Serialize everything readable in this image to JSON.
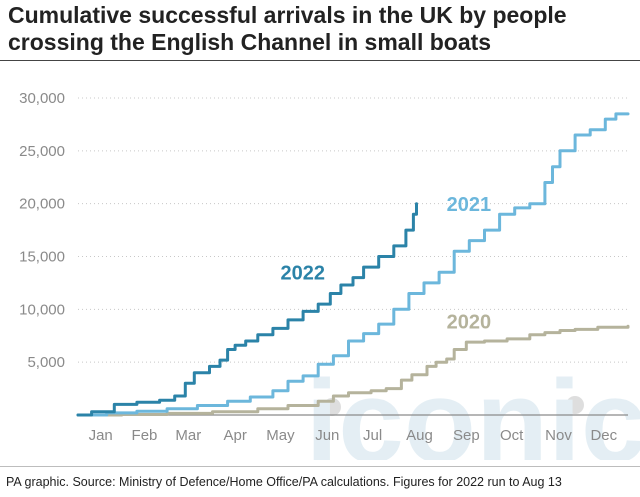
{
  "header": {
    "title": "Cumulative successful arrivals in the UK by people crossing the English Channel in small boats"
  },
  "footer": {
    "source": "PA graphic. Source: Ministry of Defence/Home Office/PA calculations. Figures for 2022 run to Aug 13"
  },
  "watermark": {
    "text": "iconic"
  },
  "chart_data": {
    "type": "line",
    "title": "Cumulative successful arrivals in the UK by people crossing the English Channel in small boats",
    "xlabel": "",
    "ylabel": "",
    "x_unit": "day of year",
    "xlim": [
      1,
      365
    ],
    "ylim": [
      0,
      30000
    ],
    "grid": "horizontal dotted",
    "legend": "none (series labelled directly on the lines)",
    "y_ticks": [
      {
        "value": 0,
        "label": ""
      },
      {
        "value": 5000,
        "label": "5,000"
      },
      {
        "value": 10000,
        "label": "10,000"
      },
      {
        "value": 15000,
        "label": "15,000"
      },
      {
        "value": 20000,
        "label": "20,000"
      },
      {
        "value": 25000,
        "label": "25,000"
      },
      {
        "value": 30000,
        "label": "30,000"
      }
    ],
    "x_ticks": [
      {
        "value": 16,
        "label": "Jan"
      },
      {
        "value": 45,
        "label": "Feb"
      },
      {
        "value": 74,
        "label": "Mar"
      },
      {
        "value": 105,
        "label": "Apr"
      },
      {
        "value": 135,
        "label": "May"
      },
      {
        "value": 166,
        "label": "Jun"
      },
      {
        "value": 196,
        "label": "Jul"
      },
      {
        "value": 227,
        "label": "Aug"
      },
      {
        "value": 258,
        "label": "Sep"
      },
      {
        "value": 288,
        "label": "Oct"
      },
      {
        "value": 319,
        "label": "Nov"
      },
      {
        "value": 349,
        "label": "Dec"
      }
    ],
    "series": [
      {
        "name": "2020",
        "color": "#b5b39c",
        "label_at": [
          245,
          8200
        ],
        "points": [
          [
            1,
            0
          ],
          [
            30,
            50
          ],
          [
            60,
            150
          ],
          [
            90,
            300
          ],
          [
            120,
            600
          ],
          [
            140,
            900
          ],
          [
            160,
            1300
          ],
          [
            170,
            1800
          ],
          [
            180,
            2100
          ],
          [
            195,
            2300
          ],
          [
            205,
            2500
          ],
          [
            215,
            3300
          ],
          [
            222,
            3800
          ],
          [
            232,
            4600
          ],
          [
            238,
            5000
          ],
          [
            245,
            5300
          ],
          [
            250,
            6200
          ],
          [
            258,
            6900
          ],
          [
            270,
            7000
          ],
          [
            285,
            7200
          ],
          [
            300,
            7600
          ],
          [
            310,
            7800
          ],
          [
            320,
            8000
          ],
          [
            330,
            8100
          ],
          [
            345,
            8300
          ],
          [
            365,
            8400
          ]
        ]
      },
      {
        "name": "2021",
        "color": "#6cb7dc",
        "label_at": [
          245,
          19300
        ],
        "points": [
          [
            1,
            0
          ],
          [
            20,
            200
          ],
          [
            40,
            350
          ],
          [
            60,
            600
          ],
          [
            80,
            900
          ],
          [
            100,
            1300
          ],
          [
            115,
            1700
          ],
          [
            130,
            2300
          ],
          [
            140,
            3200
          ],
          [
            150,
            3700
          ],
          [
            160,
            4800
          ],
          [
            170,
            5600
          ],
          [
            180,
            7000
          ],
          [
            190,
            7700
          ],
          [
            200,
            8600
          ],
          [
            210,
            10000
          ],
          [
            220,
            11500
          ],
          [
            230,
            12500
          ],
          [
            240,
            13500
          ],
          [
            250,
            15500
          ],
          [
            260,
            16500
          ],
          [
            270,
            17500
          ],
          [
            280,
            19000
          ],
          [
            290,
            19600
          ],
          [
            300,
            20000
          ],
          [
            310,
            22000
          ],
          [
            315,
            23500
          ],
          [
            320,
            25000
          ],
          [
            330,
            26500
          ],
          [
            340,
            27000
          ],
          [
            350,
            28000
          ],
          [
            357,
            28500
          ],
          [
            365,
            28500
          ]
        ]
      },
      {
        "name": "2022",
        "color": "#2b83a8",
        "label_at": [
          135,
          12800
        ],
        "points": [
          [
            1,
            0
          ],
          [
            10,
            300
          ],
          [
            25,
            1000
          ],
          [
            40,
            1200
          ],
          [
            55,
            1400
          ],
          [
            65,
            1800
          ],
          [
            72,
            3000
          ],
          [
            78,
            4000
          ],
          [
            88,
            4600
          ],
          [
            95,
            5200
          ],
          [
            100,
            6200
          ],
          [
            105,
            6600
          ],
          [
            112,
            7000
          ],
          [
            120,
            7600
          ],
          [
            130,
            8200
          ],
          [
            140,
            9000
          ],
          [
            150,
            9800
          ],
          [
            160,
            10500
          ],
          [
            168,
            11500
          ],
          [
            175,
            12300
          ],
          [
            183,
            13000
          ],
          [
            190,
            14000
          ],
          [
            200,
            15000
          ],
          [
            210,
            16000
          ],
          [
            218,
            17500
          ],
          [
            223,
            19000
          ],
          [
            225,
            20000
          ]
        ]
      }
    ]
  }
}
